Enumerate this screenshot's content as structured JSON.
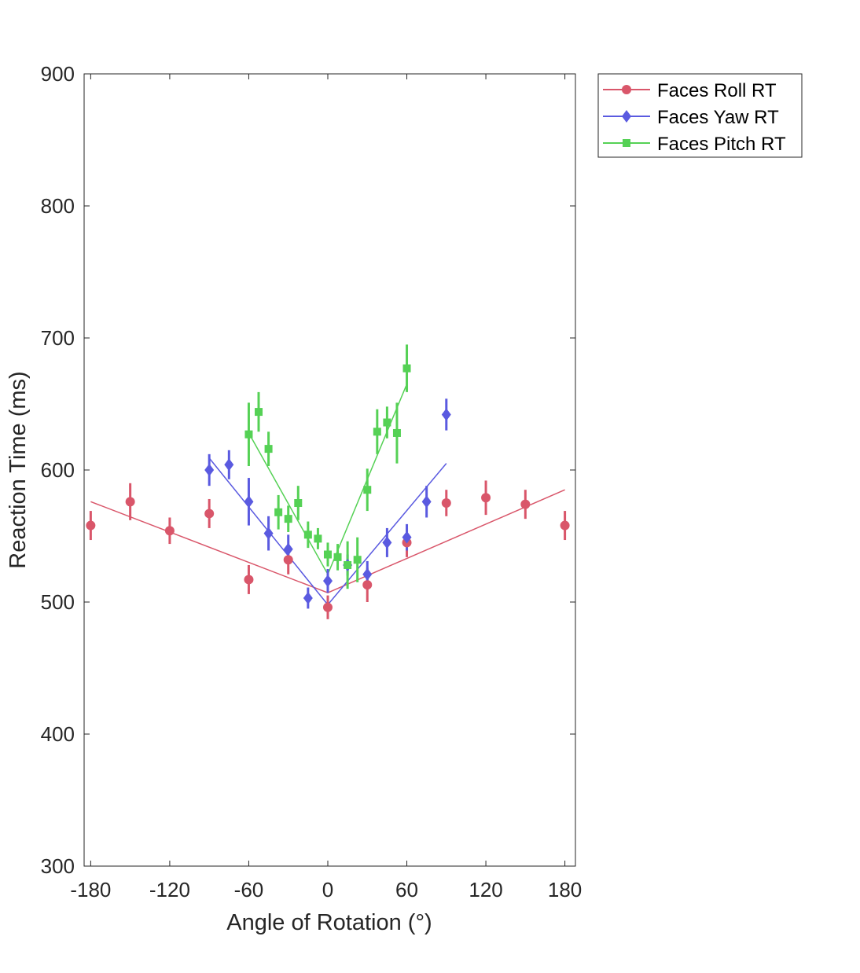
{
  "chart_data": {
    "type": "scatter",
    "title": "",
    "xlabel": "Angle of Rotation (°)",
    "ylabel": "Reaction Time (ms)",
    "xlim": [
      -185,
      188
    ],
    "ylim": [
      300,
      900
    ],
    "xticks": [
      -180,
      -120,
      -60,
      0,
      60,
      120,
      180
    ],
    "xtick_labels": [
      "-180",
      "-120",
      "-60",
      "0",
      "60",
      "120",
      "180"
    ],
    "yticks": [
      300,
      400,
      500,
      600,
      700,
      800,
      900
    ],
    "ytick_labels": [
      "300",
      "400",
      "500",
      "600",
      "700",
      "800",
      "900"
    ],
    "grid": false,
    "legend_position": "outside-top-right",
    "series": [
      {
        "name": "Faces Roll RT",
        "color": "#D9566A",
        "marker": "circle",
        "x": [
          -180,
          -150,
          -120,
          -90,
          -60,
          -30,
          0,
          30,
          60,
          90,
          120,
          150,
          180
        ],
        "y": [
          558,
          576,
          554,
          567,
          517,
          532,
          496,
          513,
          545,
          575,
          579,
          574,
          558
        ],
        "err": [
          11,
          14,
          10,
          11,
          11,
          11,
          9,
          13,
          11,
          10,
          13,
          11,
          11
        ],
        "fit": [
          [
            -180,
            576
          ],
          [
            0,
            507
          ],
          [
            180,
            585
          ]
        ]
      },
      {
        "name": "Faces Yaw RT",
        "color": "#5A5AE0",
        "marker": "diamond",
        "x": [
          -90,
          -75,
          -60,
          -45,
          -30,
          -15,
          0,
          15,
          30,
          45,
          60,
          75,
          90
        ],
        "y": [
          600,
          604,
          576,
          552,
          540,
          503,
          516,
          528,
          521,
          545,
          549,
          576,
          642
        ],
        "err": [
          12,
          11,
          18,
          13,
          11,
          8,
          9,
          8,
          10,
          11,
          10,
          12,
          12
        ],
        "fit": [
          [
            -90,
            609
          ],
          [
            0,
            498
          ],
          [
            90,
            605
          ]
        ]
      },
      {
        "name": "Faces Pitch RT",
        "color": "#55D155",
        "marker": "square",
        "x": [
          -60,
          -52.5,
          -45,
          -37.5,
          -30,
          -22.5,
          -15,
          -7.5,
          0,
          7.5,
          15,
          22.5,
          30,
          37.5,
          45,
          52.5,
          60
        ],
        "y": [
          627,
          644,
          616,
          568,
          563,
          575,
          551,
          548,
          536,
          534,
          528,
          532,
          585,
          629,
          636,
          628,
          677
        ],
        "err": [
          24,
          15,
          13,
          13,
          10,
          13,
          10,
          8,
          9,
          10,
          18,
          17,
          16,
          17,
          12,
          23,
          18
        ],
        "fit": [
          [
            -60,
            628
          ],
          [
            0,
            521
          ],
          [
            60,
            665
          ]
        ]
      }
    ]
  }
}
